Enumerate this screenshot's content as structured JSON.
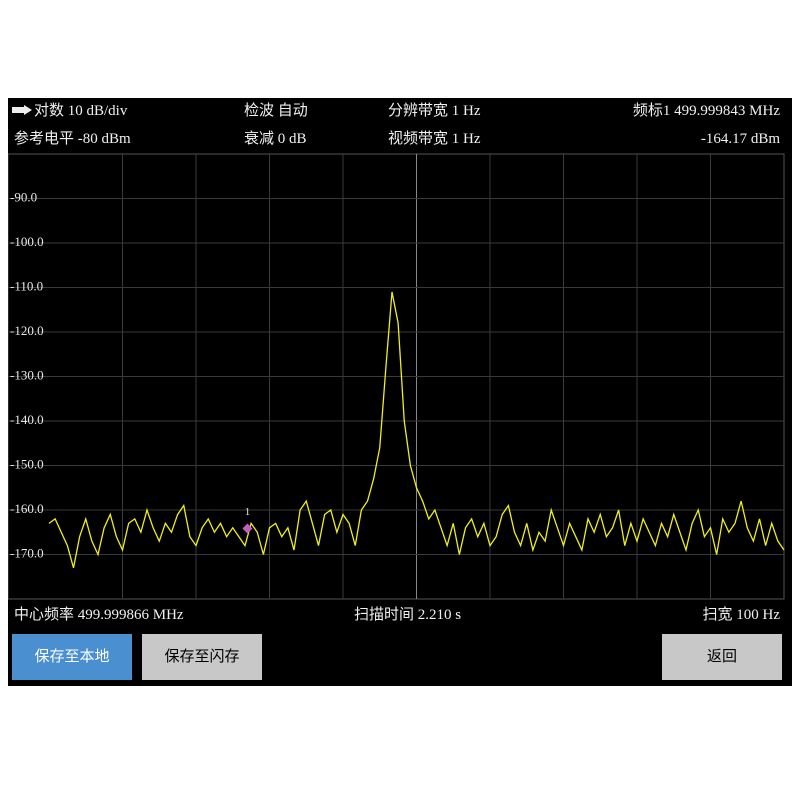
{
  "header": {
    "scale": "对数 10 dB/div",
    "detector": "检波 自动",
    "rbw": "分辨带宽 1 Hz",
    "marker_freq": "频标1 499.999843 MHz",
    "ref_level": "参考电平 -80 dBm",
    "attenuation": "衰减 0 dB",
    "vbw": "视频带宽 1 Hz",
    "marker_level": "-164.17 dBm"
  },
  "footer": {
    "center": "中心频率 499.999866 MHz",
    "sweep_time": "扫描时间 2.210 s",
    "span": "扫宽 100 Hz"
  },
  "buttons": [
    "保存至本地",
    "保存至闪存",
    "返回"
  ],
  "chart_data": {
    "type": "line",
    "color": "#f0ef1a",
    "values": [
      -163,
      -162,
      -165,
      -168,
      -173,
      -166,
      -162,
      -167,
      -170,
      -164,
      -161,
      -166,
      -169,
      -163,
      -162,
      -165,
      -160,
      -164,
      -167,
      -163,
      -165,
      -161,
      -159,
      -166,
      -168,
      -164,
      -162,
      -165,
      -163,
      -166,
      -164,
      -166,
      -168,
      -163,
      -165,
      -170,
      -164,
      -163,
      -166,
      -164,
      -169,
      -160,
      -158,
      -163,
      -168,
      -161,
      -160,
      -165,
      -161,
      -163,
      -168,
      -160,
      -158,
      -153,
      -146,
      -128,
      -111,
      -118,
      -140,
      -150,
      -155,
      -158,
      -162,
      -160,
      -164,
      -168,
      -163,
      -170,
      -164,
      -162,
      -166,
      -163,
      -168,
      -166,
      -161,
      -159,
      -165,
      -168,
      -163,
      -169,
      -165,
      -167,
      -160,
      -164,
      -168,
      -163,
      -166,
      -169,
      -162,
      -165,
      -161,
      -166,
      -164,
      -160,
      -168,
      -163,
      -167,
      -162,
      -165,
      -168,
      -163,
      -166,
      -161,
      -165,
      -169,
      -163,
      -160,
      -166,
      -164,
      -170,
      -162,
      -165,
      -163,
      -158,
      -164,
      -167,
      -162,
      -168,
      -163,
      -167,
      -169
    ],
    "xlim": [
      499.999816,
      499.999916
    ],
    "ylim": [
      -180,
      -80
    ],
    "yticks": [
      {
        "value": -90,
        "label": "-90.0"
      },
      {
        "value": -100,
        "label": "-100.0"
      },
      {
        "value": -110,
        "label": "-110.0"
      },
      {
        "value": -120,
        "label": "-120.0"
      },
      {
        "value": -130,
        "label": "-130.0"
      },
      {
        "value": -140,
        "label": "-140.0"
      },
      {
        "value": -150,
        "label": "-150.0"
      },
      {
        "value": -160,
        "label": "-160.0"
      },
      {
        "value": -170,
        "label": "-170.0"
      }
    ],
    "grid": true,
    "markers": [
      {
        "label": "1",
        "x": 499.999843,
        "value": -164.17,
        "color": "#c060c0"
      }
    ]
  }
}
